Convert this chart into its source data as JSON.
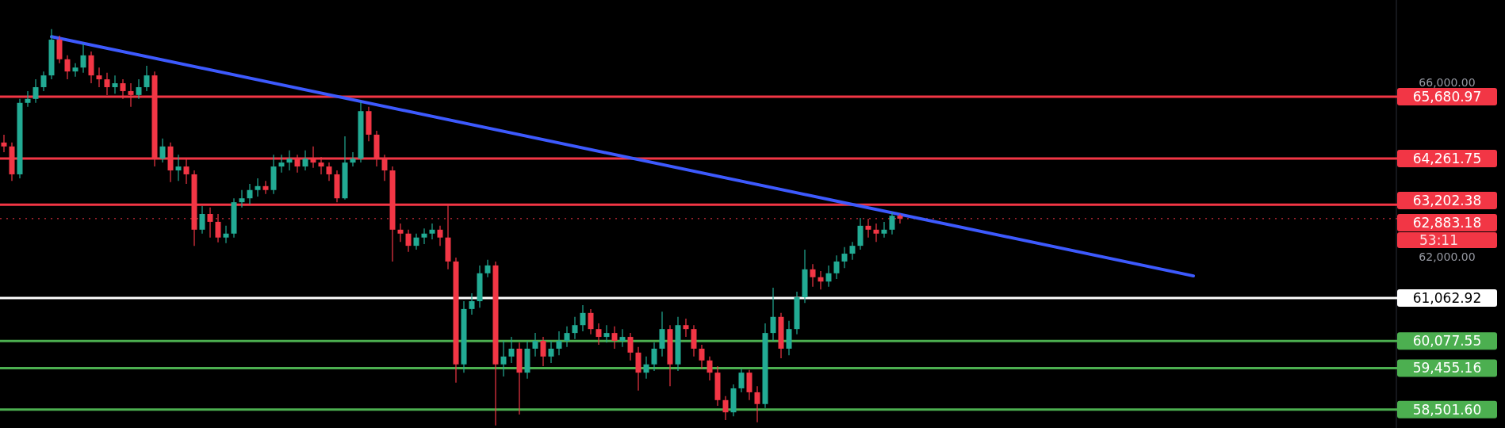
{
  "chart_data": {
    "type": "candlestick",
    "categories": [
      null,
      null,
      null,
      null,
      null,
      null,
      null,
      null,
      null,
      null,
      null,
      null,
      null,
      null,
      null,
      null,
      null,
      null,
      null,
      null,
      null,
      null,
      null,
      null,
      null,
      null,
      null,
      null,
      null,
      null,
      null,
      null,
      null,
      null,
      null,
      null,
      null,
      null,
      null,
      null,
      null,
      null,
      null,
      null,
      null,
      null,
      null,
      null,
      null,
      null,
      null,
      null,
      null,
      null,
      null,
      null,
      null,
      null,
      null,
      null,
      null,
      null,
      null,
      null,
      null,
      null,
      null,
      null,
      null,
      null,
      null,
      null,
      null,
      null,
      null,
      null,
      null,
      null,
      null,
      null,
      null,
      null,
      null,
      null,
      null,
      null,
      null,
      null,
      null,
      null,
      null,
      null,
      null,
      null,
      null,
      null,
      null,
      null,
      null,
      null,
      null,
      null,
      null,
      null,
      null,
      null,
      null,
      null,
      null,
      null,
      null,
      null,
      null,
      null,
      null,
      null,
      null,
      null,
      null,
      null,
      null,
      null,
      null,
      null,
      null,
      null,
      null,
      null,
      null,
      null,
      null,
      null,
      null,
      null,
      null,
      null,
      null,
      null,
      null,
      null,
      null,
      null,
      null,
      null,
      null,
      null,
      null,
      null,
      null,
      null,
      null,
      null,
      null,
      null,
      null,
      null,
      null,
      null,
      null,
      null,
      null,
      null,
      null,
      null,
      null,
      null,
      null,
      null,
      null,
      null,
      null,
      null,
      null,
      null,
      null,
      null
    ],
    "ohlc": [
      [
        64630,
        64810,
        64410,
        64540
      ],
      [
        64540,
        64630,
        63750,
        63900
      ],
      [
        63900,
        65630,
        63810,
        65540
      ],
      [
        65540,
        65810,
        65450,
        65630
      ],
      [
        65630,
        66080,
        65540,
        65900
      ],
      [
        65900,
        66260,
        65810,
        66170
      ],
      [
        66170,
        67230,
        66080,
        66990
      ],
      [
        66990,
        67080,
        66450,
        66540
      ],
      [
        66540,
        66630,
        66080,
        66260
      ],
      [
        66260,
        66450,
        66140,
        66350
      ],
      [
        66350,
        66900,
        66230,
        66630
      ],
      [
        66630,
        66720,
        65990,
        66170
      ],
      [
        66170,
        66350,
        65900,
        66080
      ],
      [
        66080,
        66230,
        65720,
        65900
      ],
      [
        65900,
        66170,
        65750,
        65990
      ],
      [
        65990,
        66080,
        65630,
        65810
      ],
      [
        65810,
        65990,
        65450,
        65720
      ],
      [
        65720,
        66080,
        65630,
        65900
      ],
      [
        65900,
        66390,
        65810,
        66170
      ],
      [
        66170,
        66260,
        64080,
        64260
      ],
      [
        64260,
        64720,
        64170,
        64540
      ],
      [
        64540,
        64630,
        63720,
        63990
      ],
      [
        63990,
        64350,
        63750,
        64080
      ],
      [
        64080,
        64260,
        63680,
        63900
      ],
      [
        63900,
        63990,
        62260,
        62630
      ],
      [
        62630,
        63170,
        62540,
        62990
      ],
      [
        62990,
        63140,
        62450,
        62810
      ],
      [
        62810,
        62990,
        62340,
        62450
      ],
      [
        62450,
        62720,
        62320,
        62540
      ],
      [
        62540,
        63350,
        62450,
        63260
      ],
      [
        63260,
        63540,
        63140,
        63350
      ],
      [
        63350,
        63680,
        63210,
        63540
      ],
      [
        63540,
        63810,
        63390,
        63630
      ],
      [
        63630,
        63750,
        63450,
        63540
      ],
      [
        63540,
        64350,
        63450,
        64080
      ],
      [
        64080,
        64350,
        63940,
        64170
      ],
      [
        64170,
        64450,
        63990,
        64260
      ],
      [
        64260,
        64350,
        63940,
        64080
      ],
      [
        64080,
        64450,
        63990,
        64260
      ],
      [
        64260,
        64540,
        64050,
        64170
      ],
      [
        64170,
        64300,
        63900,
        64080
      ],
      [
        64080,
        64170,
        63750,
        63900
      ],
      [
        63900,
        63990,
        63260,
        63350
      ],
      [
        63350,
        64770,
        63320,
        64170
      ],
      [
        64170,
        64410,
        64080,
        64260
      ],
      [
        64260,
        65570,
        64170,
        65350
      ],
      [
        65350,
        65450,
        64660,
        64810
      ],
      [
        64810,
        64900,
        64080,
        64260
      ],
      [
        64260,
        64350,
        63750,
        63990
      ],
      [
        63990,
        64080,
        61900,
        62630
      ],
      [
        62630,
        62770,
        62350,
        62540
      ],
      [
        62540,
        62630,
        62120,
        62260
      ],
      [
        62260,
        62540,
        62170,
        62450
      ],
      [
        62450,
        62660,
        62300,
        62540
      ],
      [
        62540,
        62770,
        62410,
        62630
      ],
      [
        62630,
        62720,
        62260,
        62450
      ],
      [
        62450,
        63210,
        61720,
        61900
      ],
      [
        61900,
        61990,
        59120,
        59540
      ],
      [
        59540,
        60990,
        59350,
        60810
      ],
      [
        60810,
        61170,
        60680,
        60990
      ],
      [
        60990,
        61810,
        60840,
        61630
      ],
      [
        61630,
        61940,
        61540,
        61810
      ],
      [
        61810,
        61900,
        58140,
        59540
      ],
      [
        59540,
        60080,
        59260,
        59720
      ],
      [
        59720,
        60170,
        59570,
        59900
      ],
      [
        59900,
        60040,
        58390,
        59350
      ],
      [
        59350,
        60080,
        59210,
        59900
      ],
      [
        59900,
        60260,
        59720,
        60080
      ],
      [
        60080,
        60170,
        59500,
        59720
      ],
      [
        59720,
        60080,
        59570,
        59900
      ],
      [
        59900,
        60300,
        59750,
        60080
      ],
      [
        60080,
        60410,
        59940,
        60260
      ],
      [
        60260,
        60630,
        60120,
        60440
      ],
      [
        60440,
        60900,
        60300,
        60720
      ],
      [
        60720,
        60810,
        60230,
        60350
      ],
      [
        60350,
        60480,
        59990,
        60170
      ],
      [
        60170,
        60440,
        60040,
        60260
      ],
      [
        60260,
        60410,
        59900,
        60080
      ],
      [
        60080,
        60350,
        59940,
        60170
      ],
      [
        60170,
        60260,
        59630,
        59810
      ],
      [
        59810,
        59940,
        58940,
        59350
      ],
      [
        59350,
        59720,
        59210,
        59540
      ],
      [
        59540,
        60040,
        59390,
        59900
      ],
      [
        59900,
        60750,
        59720,
        60350
      ],
      [
        60350,
        60440,
        59040,
        59540
      ],
      [
        59540,
        60630,
        59390,
        60440
      ],
      [
        60440,
        60590,
        60170,
        60350
      ],
      [
        60350,
        60440,
        59720,
        59900
      ],
      [
        59900,
        59990,
        59440,
        59630
      ],
      [
        59630,
        59720,
        59170,
        59350
      ],
      [
        59350,
        59500,
        58590,
        58720
      ],
      [
        58720,
        58810,
        58260,
        58440
      ],
      [
        58440,
        59080,
        58350,
        58990
      ],
      [
        58990,
        59440,
        58900,
        59350
      ],
      [
        59350,
        59410,
        58720,
        58900
      ],
      [
        58900,
        59040,
        58210,
        58630
      ],
      [
        58630,
        60480,
        58540,
        60260
      ],
      [
        60260,
        61300,
        60080,
        60630
      ],
      [
        60630,
        60720,
        59680,
        59900
      ],
      [
        59900,
        60540,
        59750,
        60350
      ],
      [
        60350,
        61210,
        60230,
        61080
      ],
      [
        61080,
        62170,
        60950,
        61720
      ],
      [
        61720,
        61840,
        61320,
        61540
      ],
      [
        61540,
        61680,
        61260,
        61440
      ],
      [
        61440,
        61810,
        61320,
        61630
      ],
      [
        61630,
        62040,
        61500,
        61900
      ],
      [
        61900,
        62230,
        61750,
        62080
      ],
      [
        62080,
        62350,
        61940,
        62260
      ],
      [
        62260,
        62900,
        62170,
        62720
      ],
      [
        62720,
        62880,
        62450,
        62630
      ],
      [
        62630,
        62770,
        62350,
        62540
      ],
      [
        62540,
        62810,
        62450,
        62630
      ],
      [
        62630,
        63030,
        62520,
        62950
      ],
      [
        62950,
        62990,
        62770,
        62883.18
      ],
      null,
      null,
      null,
      null,
      null,
      null,
      null,
      null,
      null,
      null,
      null,
      null,
      null,
      null,
      null,
      null,
      null,
      null,
      null,
      null,
      null,
      null,
      null,
      null,
      null,
      null,
      null,
      null,
      null,
      null,
      null,
      null,
      null,
      null,
      null,
      null,
      null,
      null,
      null,
      null,
      null,
      null,
      null,
      null,
      null,
      null,
      null,
      null,
      null,
      null,
      null,
      null,
      null,
      null,
      null,
      null,
      null,
      null,
      null,
      null,
      null,
      null
    ],
    "series": [
      {
        "type": "line",
        "color": "#3d5afe",
        "values": [
          null,
          null,
          null,
          null,
          null,
          null,
          67060,
          null,
          null,
          null,
          null,
          null,
          null,
          null,
          null,
          null,
          null,
          null,
          null,
          null,
          null,
          null,
          null,
          null,
          null,
          null,
          null,
          null,
          null,
          null,
          null,
          null,
          null,
          null,
          null,
          null,
          null,
          null,
          null,
          null,
          null,
          null,
          null,
          null,
          null,
          null,
          null,
          null,
          null,
          null,
          null,
          null,
          null,
          null,
          null,
          null,
          null,
          null,
          null,
          null,
          null,
          null,
          null,
          null,
          null,
          null,
          null,
          null,
          null,
          null,
          null,
          null,
          null,
          null,
          null,
          null,
          null,
          null,
          null,
          null,
          null,
          null,
          null,
          null,
          null,
          null,
          null,
          null,
          null,
          null,
          null,
          null,
          null,
          null,
          null,
          null,
          null,
          null,
          null,
          null,
          null,
          null,
          null,
          null,
          null,
          null,
          null,
          null,
          null,
          null,
          null,
          null,
          null,
          null,
          null,
          null,
          null,
          null,
          null,
          null,
          null,
          null,
          null,
          null,
          null,
          null,
          null,
          null,
          null,
          null,
          null,
          null,
          null,
          null,
          null,
          null,
          null,
          null,
          null,
          null,
          null,
          null,
          null,
          null,
          null,
          null,
          null,
          null,
          null,
          null,
          61570,
          null,
          null,
          null,
          null,
          null,
          null,
          null,
          null,
          null,
          null,
          null,
          null,
          null,
          null,
          null,
          null,
          null,
          null,
          null,
          null,
          null,
          null,
          null,
          null,
          null
        ]
      }
    ],
    "ylim": [
      58080,
      67900
    ],
    "yticks": [
      {
        "value": 66000,
        "label": "66,000.00"
      },
      {
        "value": 62000,
        "label": "62,000.00"
      }
    ],
    "grid": false,
    "ref_lines": [
      {
        "axis": "y",
        "value": 65680.97,
        "label": "65,680.97",
        "color": "#f23645"
      },
      {
        "axis": "y",
        "value": 64261.75,
        "label": "64,261.75",
        "color": "#f23645"
      },
      {
        "axis": "y",
        "value": 63202.38,
        "label": "63,202.38",
        "color": "#f23645"
      },
      {
        "axis": "y",
        "value": 62883.18,
        "label": "62,883.18",
        "color": "#f23645",
        "line_style": "dotted"
      },
      {
        "axis": "y",
        "value": 61062.92,
        "label": "61,062.92",
        "color": "#ffffff"
      },
      {
        "axis": "y",
        "value": 60077.55,
        "label": "60,077.55",
        "color": "#4caf50"
      },
      {
        "axis": "y",
        "value": 59455.16,
        "label": "59,455.16",
        "color": "#4caf50"
      },
      {
        "axis": "y",
        "value": 58501.6,
        "label": "58,501.60",
        "color": "#4caf50"
      }
    ],
    "annotations": [
      "53:11"
    ]
  }
}
